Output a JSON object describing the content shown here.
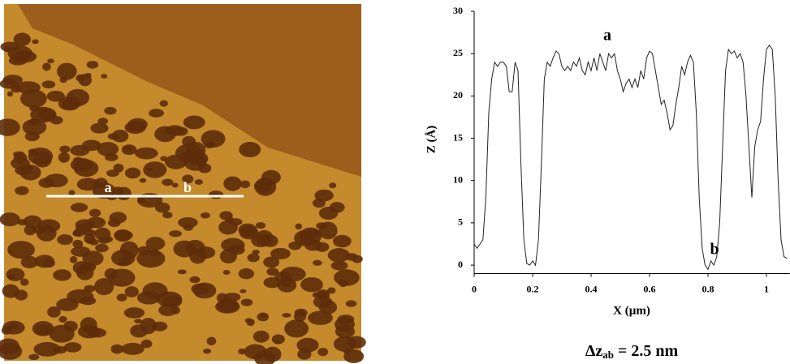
{
  "image_labels": [
    "a",
    "b"
  ],
  "chart_data": {
    "type": "line",
    "x_label": "X (µm)",
    "y_label": "Z (Å)",
    "annotations": [
      "a",
      "b"
    ],
    "caption": {
      "main": "Δz",
      "sub": "ab",
      "rest": " = 2.5 nm"
    },
    "color": "#222222",
    "xlim": [
      0,
      1.08
    ],
    "ylim": [
      -1,
      30
    ],
    "xticks": [
      0,
      0.2,
      0.4,
      0.6,
      0.8,
      1
    ],
    "yticks": [
      0,
      5,
      10,
      15,
      20,
      25,
      30
    ],
    "x": [
      0,
      0.01,
      0.02,
      0.03,
      0.04,
      0.05,
      0.06,
      0.07,
      0.08,
      0.09,
      0.1,
      0.11,
      0.12,
      0.13,
      0.14,
      0.15,
      0.16,
      0.17,
      0.18,
      0.19,
      0.2,
      0.21,
      0.22,
      0.23,
      0.24,
      0.25,
      0.26,
      0.27,
      0.28,
      0.29,
      0.3,
      0.31,
      0.32,
      0.33,
      0.34,
      0.35,
      0.36,
      0.37,
      0.38,
      0.39,
      0.4,
      0.41,
      0.42,
      0.43,
      0.44,
      0.45,
      0.46,
      0.47,
      0.48,
      0.49,
      0.5,
      0.51,
      0.52,
      0.53,
      0.54,
      0.55,
      0.56,
      0.57,
      0.58,
      0.59,
      0.6,
      0.61,
      0.62,
      0.63,
      0.64,
      0.65,
      0.66,
      0.67,
      0.68,
      0.69,
      0.7,
      0.71,
      0.72,
      0.73,
      0.74,
      0.75,
      0.76,
      0.77,
      0.78,
      0.79,
      0.8,
      0.81,
      0.82,
      0.83,
      0.84,
      0.85,
      0.86,
      0.87,
      0.88,
      0.89,
      0.9,
      0.91,
      0.92,
      0.93,
      0.94,
      0.95,
      0.96,
      0.97,
      0.98,
      0.99,
      1,
      1.01,
      1.02,
      1.03,
      1.04,
      1.05,
      1.06,
      1.07
    ],
    "values": [
      2.5,
      2,
      2.5,
      3,
      8,
      18,
      22,
      24,
      23.5,
      24,
      24,
      23.5,
      20.5,
      20.5,
      24,
      23,
      12,
      3,
      0.2,
      0,
      0.5,
      0,
      3,
      12,
      22,
      24,
      23.5,
      24.5,
      25.3,
      25,
      23.5,
      23,
      23.5,
      23,
      24,
      23.5,
      24.5,
      23,
      22.5,
      24,
      23,
      24.5,
      23,
      25,
      24,
      23,
      25,
      24.5,
      25,
      23,
      22,
      20.5,
      21.5,
      22,
      21,
      22,
      21,
      23,
      22,
      24.5,
      25.3,
      25,
      23,
      21,
      19,
      19.5,
      18,
      16,
      16.5,
      19,
      21,
      23.5,
      22.5,
      24,
      24.8,
      24,
      18,
      8,
      2,
      0,
      -0.5,
      0.5,
      0,
      1,
      5,
      14,
      23,
      25.5,
      25,
      25.3,
      24.5,
      25,
      24,
      20,
      14,
      8,
      14,
      16,
      17,
      22,
      25.5,
      26,
      25.5,
      20,
      10,
      3,
      1,
      0.8
    ]
  }
}
